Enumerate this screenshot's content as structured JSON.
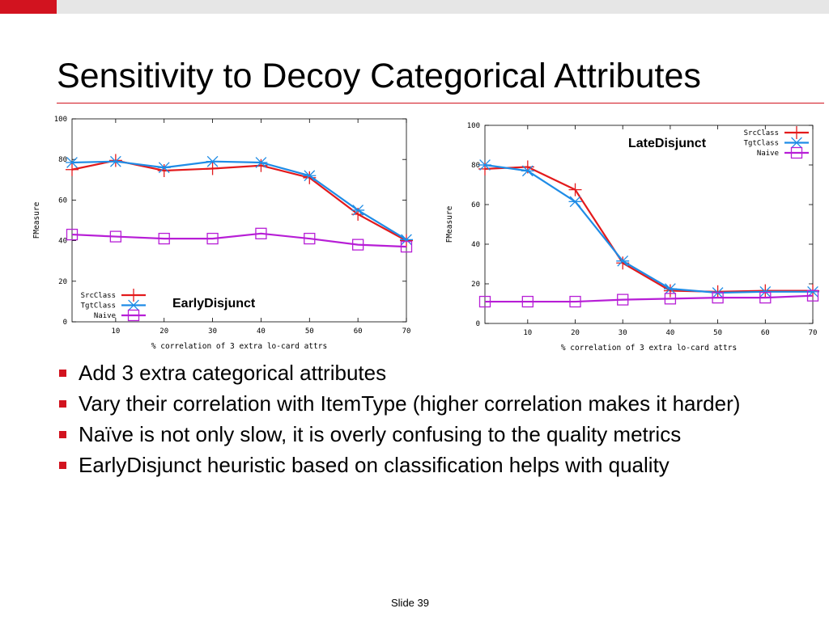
{
  "slide": {
    "title": "Sensitivity to Decoy Categorical Attributes",
    "footer": "Slide 39",
    "bullets": [
      "Add 3 extra categorical attributes",
      "Vary their correlation with ItemType (higher correlation makes it harder)",
      "Naïve is not only slow, it is overly confusing to the quality metrics",
      "EarlyDisjunct heuristic based on classification helps with quality"
    ],
    "accent_color": "#d2131f"
  },
  "chart_data": [
    {
      "type": "line",
      "title": "",
      "annotation": "EarlyDisjunct",
      "xlabel": "% correlation of 3 extra lo-card attrs",
      "ylabel": "FMeasure",
      "xlim": [
        1,
        70
      ],
      "ylim": [
        0,
        100
      ],
      "xticks": [
        10,
        20,
        30,
        40,
        50,
        60,
        70
      ],
      "yticks": [
        0,
        20,
        40,
        60,
        80,
        100
      ],
      "legend": "bottom-left",
      "grid": false,
      "x": [
        1,
        10,
        20,
        30,
        40,
        50,
        60,
        70
      ],
      "series": [
        {
          "name": "SrcClass",
          "color": "#e31a1c",
          "marker": "plus",
          "values": [
            75,
            79.5,
            74.5,
            75.5,
            77,
            71,
            53,
            40
          ]
        },
        {
          "name": "TgtClass",
          "color": "#1f8ce6",
          "marker": "star",
          "values": [
            78.5,
            79,
            76,
            79,
            78.5,
            72,
            55,
            40.5
          ]
        },
        {
          "name": "Naive",
          "color": "#b71ed6",
          "marker": "square",
          "values": [
            43,
            42,
            41,
            41,
            43.5,
            41,
            38,
            37
          ]
        }
      ]
    },
    {
      "type": "line",
      "title": "",
      "annotation": "LateDisjunct",
      "xlabel": "% correlation of 3 extra lo-card attrs",
      "ylabel": "FMeasure",
      "xlim": [
        1,
        70
      ],
      "ylim": [
        0,
        100
      ],
      "xticks": [
        10,
        20,
        30,
        40,
        50,
        60,
        70
      ],
      "yticks": [
        0,
        20,
        40,
        60,
        80,
        100
      ],
      "legend": "top-right",
      "grid": false,
      "x": [
        1,
        10,
        20,
        30,
        40,
        50,
        60,
        70
      ],
      "series": [
        {
          "name": "SrcClass",
          "color": "#e31a1c",
          "marker": "plus",
          "values": [
            78,
            79,
            67.5,
            30.5,
            16.5,
            16,
            16.5,
            16.5
          ]
        },
        {
          "name": "TgtClass",
          "color": "#1f8ce6",
          "marker": "star",
          "values": [
            80,
            77,
            61.5,
            31.5,
            17.5,
            15.5,
            16,
            16
          ]
        },
        {
          "name": "Naive",
          "color": "#b71ed6",
          "marker": "square",
          "values": [
            11,
            11,
            11,
            12,
            12.5,
            13,
            13,
            14
          ]
        }
      ]
    }
  ]
}
